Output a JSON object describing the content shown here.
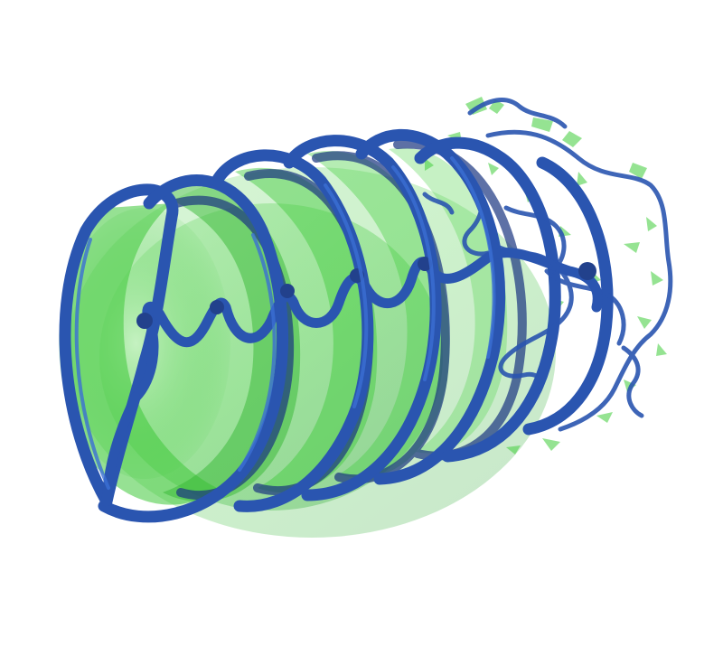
{
  "scene": {
    "colors": {
      "background": "#ffffff",
      "tube": "#2a55b0",
      "tube_core": "#3b6fd4",
      "tube_dark": "#1a3580",
      "sheet": "#3fc93a",
      "sheet_light": "#8ee38a",
      "sheet_dark": "#1f9a2b"
    }
  }
}
